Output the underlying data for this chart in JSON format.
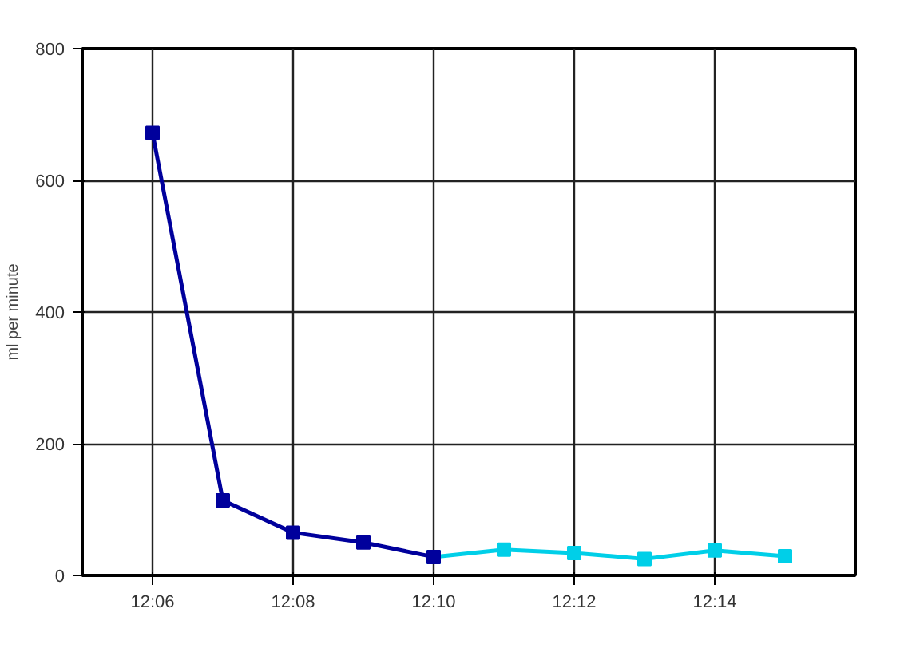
{
  "chart_data": {
    "type": "line",
    "ylabel": "ml per minute",
    "xlim": [
      12.083333,
      12.266667
    ],
    "xticks": [
      {
        "value": 12.1,
        "label": "12:06"
      },
      {
        "value": 12.133333,
        "label": "12:08"
      },
      {
        "value": 12.166667,
        "label": "12:10"
      },
      {
        "value": 12.2,
        "label": "12:12"
      },
      {
        "value": 12.233333,
        "label": "12:14"
      }
    ],
    "ylim": [
      0,
      800
    ],
    "yticks": [
      0,
      200,
      400,
      600,
      800
    ],
    "grid": true,
    "marker": "square",
    "line_style": "solid",
    "series": [
      {
        "color": "#00cfe8",
        "x": [
          12.166667,
          12.183333,
          12.2,
          12.216667,
          12.233333,
          12.25
        ],
        "values": [
          28,
          39,
          34,
          25,
          38,
          29
        ]
      },
      {
        "color": "#00009c",
        "x": [
          12.1,
          12.116667,
          12.133333,
          12.15,
          12.166667
        ],
        "values": [
          672,
          114,
          65,
          50,
          28
        ]
      }
    ]
  }
}
